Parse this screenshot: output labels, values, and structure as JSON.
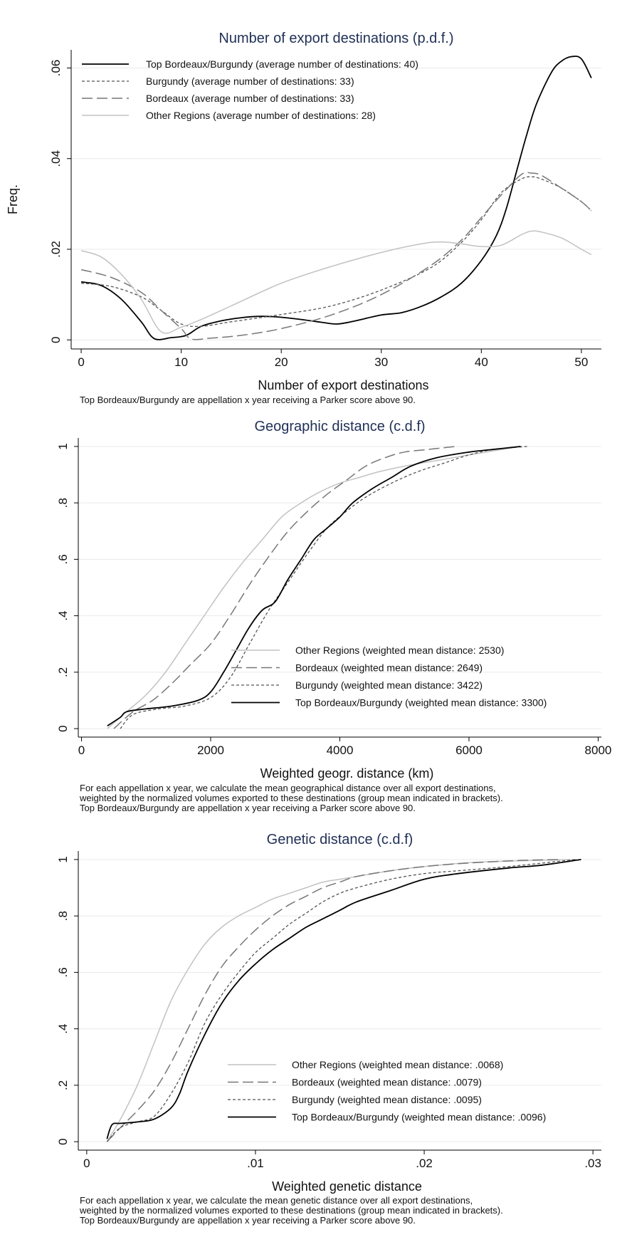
{
  "chart_data": [
    {
      "type": "line",
      "title": "Number of export destinations (p.d.f.)",
      "xlabel": "Number of export destinations",
      "ylabel": "Freq.",
      "xlim": [
        -1,
        52
      ],
      "ylim": [
        -0.002,
        0.064
      ],
      "xticks": [
        0,
        10,
        20,
        30,
        40,
        50
      ],
      "xtick_labels": [
        "0",
        "10",
        "20",
        "30",
        "40",
        "50"
      ],
      "yticks": [
        0,
        0.02,
        0.04,
        0.06
      ],
      "ytick_labels": [
        "0",
        ".02",
        ".04",
        ".06"
      ],
      "grid": true,
      "legend_position": "top-left",
      "note": [
        "Top Bordeaux/Burgundy are appellation x year receiving a Parker score above 90."
      ],
      "series": [
        {
          "name": "Top Bordeaux/Burgundy (average number of destinations: 40)",
          "color": "#000000",
          "dash": "",
          "width": 1.8,
          "x": [
            0,
            2,
            4,
            6,
            7.3,
            9,
            10.5,
            12,
            14,
            16,
            18,
            20,
            22,
            24,
            25.5,
            27,
            30,
            32,
            34,
            36,
            38,
            40,
            41.5,
            42.5,
            43.5,
            44.5,
            45.5,
            47,
            48,
            49,
            50,
            51
          ],
          "y": [
            0.0128,
            0.012,
            0.009,
            0.004,
            0.0003,
            0.0005,
            0.001,
            0.003,
            0.0042,
            0.0049,
            0.0052,
            0.005,
            0.0045,
            0.0039,
            0.0035,
            0.004,
            0.0055,
            0.006,
            0.0074,
            0.0095,
            0.0125,
            0.0175,
            0.023,
            0.029,
            0.037,
            0.045,
            0.052,
            0.059,
            0.0615,
            0.0625,
            0.062,
            0.0578
          ]
        },
        {
          "name": "Burgundy (average number of destinations: 33)",
          "color": "#555555",
          "dash": "4 3",
          "width": 1.3,
          "x": [
            0,
            3,
            6,
            8,
            10,
            12,
            15,
            20,
            25,
            30,
            35,
            38,
            40,
            42,
            44,
            45,
            46,
            48,
            50,
            51
          ],
          "y": [
            0.0125,
            0.0118,
            0.0095,
            0.0065,
            0.0035,
            0.003,
            0.004,
            0.0056,
            0.0075,
            0.011,
            0.016,
            0.0215,
            0.0265,
            0.0325,
            0.0355,
            0.036,
            0.0355,
            0.0335,
            0.0305,
            0.0285
          ]
        },
        {
          "name": "Bordeaux (average number of destinations: 33)",
          "color": "#777777",
          "dash": "15 6",
          "width": 1.5,
          "x": [
            0,
            3,
            6,
            8,
            10,
            11,
            13,
            16,
            20,
            25,
            30,
            35,
            38,
            40,
            42,
            44,
            45,
            46,
            48,
            50,
            51
          ],
          "y": [
            0.0155,
            0.0138,
            0.0105,
            0.0065,
            0.0025,
            0.0002,
            0.0004,
            0.001,
            0.0025,
            0.0055,
            0.01,
            0.0165,
            0.022,
            0.027,
            0.032,
            0.0365,
            0.0368,
            0.0363,
            0.0335,
            0.0305,
            0.0285
          ]
        },
        {
          "name": "Other Regions (average number of destinations: 28)",
          "color": "#c2c2c2",
          "dash": "",
          "width": 1.5,
          "x": [
            0,
            2,
            4,
            6,
            8,
            10,
            12,
            15,
            20,
            25,
            30,
            34,
            36,
            38,
            40,
            42,
            44,
            45,
            46,
            48,
            50,
            51
          ],
          "y": [
            0.0197,
            0.0183,
            0.0145,
            0.009,
            0.0018,
            0.0028,
            0.0045,
            0.0075,
            0.0125,
            0.0162,
            0.0193,
            0.0212,
            0.0216,
            0.0212,
            0.0206,
            0.0209,
            0.0232,
            0.024,
            0.0238,
            0.0225,
            0.02,
            0.0188
          ]
        }
      ]
    },
    {
      "type": "line",
      "title": "Geographic distance (c.d.f)",
      "xlabel": "Weighted geogr. distance (km)",
      "ylabel": "",
      "xlim": [
        -50,
        8050
      ],
      "ylim": [
        -0.03,
        1.03
      ],
      "xticks": [
        0,
        2000,
        4000,
        6000,
        8000
      ],
      "xtick_labels": [
        "0",
        "2000",
        "4000",
        "6000",
        "8000"
      ],
      "yticks": [
        0,
        0.2,
        0.4,
        0.6,
        0.8,
        1
      ],
      "ytick_labels": [
        "0",
        ".2",
        ".4",
        ".6",
        ".8",
        "1"
      ],
      "grid": true,
      "legend_position": "bottom-right",
      "note": [
        "For each appellation x year, we calculate the mean geographical distance over all export destinations,",
        "weighted by the normalized volumes exported to these destinations (group mean indicated in brackets).",
        "Top Bordeaux/Burgundy are appellation x year receiving a Parker score above 90."
      ],
      "series": [
        {
          "name": "Other Regions (weighted mean distance: 2530)",
          "color": "#c2c2c2",
          "dash": "",
          "width": 1.5,
          "x": [
            400,
            700,
            1000,
            1300,
            1600,
            1900,
            2200,
            2500,
            2800,
            3100,
            3400,
            3700,
            4000,
            4300,
            4600,
            5000,
            5500,
            6000,
            6400,
            6800
          ],
          "y": [
            0,
            0.06,
            0.12,
            0.2,
            0.3,
            0.4,
            0.5,
            0.59,
            0.67,
            0.75,
            0.8,
            0.84,
            0.87,
            0.89,
            0.91,
            0.93,
            0.95,
            0.97,
            0.985,
            1
          ]
        },
        {
          "name": "Bordeaux (weighted mean distance: 2649)",
          "color": "#777777",
          "dash": "15 6",
          "width": 1.5,
          "x": [
            500,
            800,
            1100,
            1400,
            1700,
            2000,
            2300,
            2600,
            2900,
            3200,
            3500,
            3800,
            4100,
            4400,
            4700,
            5000,
            5400,
            5800
          ],
          "y": [
            0,
            0.06,
            0.1,
            0.16,
            0.23,
            0.3,
            0.4,
            0.51,
            0.61,
            0.7,
            0.77,
            0.83,
            0.88,
            0.93,
            0.96,
            0.98,
            0.99,
            1
          ]
        },
        {
          "name": "Burgundy (weighted mean distance: 3422)",
          "color": "#555555",
          "dash": "4 3",
          "width": 1.3,
          "x": [
            600,
            800,
            1200,
            1600,
            2000,
            2300,
            2600,
            2900,
            3200,
            3500,
            3800,
            4100,
            4400,
            4800,
            5200,
            5600,
            6000,
            6400,
            6900
          ],
          "y": [
            0,
            0.05,
            0.07,
            0.08,
            0.11,
            0.18,
            0.3,
            0.42,
            0.52,
            0.62,
            0.71,
            0.77,
            0.82,
            0.87,
            0.91,
            0.94,
            0.97,
            0.99,
            1
          ]
        },
        {
          "name": "Top Bordeaux/Burgundy (weighted mean distance: 3300)",
          "color": "#000000",
          "dash": "",
          "width": 1.8,
          "x": [
            400,
            600,
            700,
            1000,
            1400,
            1800,
            2000,
            2200,
            2400,
            2600,
            2800,
            3000,
            3200,
            3400,
            3600,
            3800,
            4000,
            4200,
            4500,
            4800,
            5100,
            5500,
            6000,
            6400,
            6800
          ],
          "y": [
            0.01,
            0.04,
            0.06,
            0.07,
            0.08,
            0.1,
            0.13,
            0.2,
            0.28,
            0.36,
            0.42,
            0.45,
            0.53,
            0.6,
            0.67,
            0.71,
            0.75,
            0.8,
            0.85,
            0.89,
            0.93,
            0.96,
            0.98,
            0.99,
            1
          ]
        }
      ]
    },
    {
      "type": "line",
      "title": "Genetic distance (c.d.f)",
      "xlabel": "Weighted genetic distance",
      "ylabel": "",
      "xlim": [
        -0.0005,
        0.0305
      ],
      "ylim": [
        -0.03,
        1.03
      ],
      "xticks": [
        0,
        0.01,
        0.02,
        0.03
      ],
      "xtick_labels": [
        "0",
        ".01",
        ".02",
        ".03"
      ],
      "yticks": [
        0,
        0.2,
        0.4,
        0.6,
        0.8,
        1
      ],
      "ytick_labels": [
        "0",
        ".2",
        ".4",
        ".6",
        ".8",
        "1"
      ],
      "grid": true,
      "legend_position": "bottom-right",
      "note": [
        "For each appellation x year, we calculate the mean genetic distance over all export destinations,",
        "weighted by the normalized volumes exported to these destinations (group mean indicated in brackets).",
        "Top Bordeaux/Burgundy are appellation x year receiving a Parker score above 90."
      ],
      "series": [
        {
          "name": "Other Regions (weighted mean distance: .0068)",
          "color": "#c2c2c2",
          "dash": "",
          "width": 1.5,
          "x": [
            0.0012,
            0.002,
            0.003,
            0.004,
            0.005,
            0.006,
            0.007,
            0.008,
            0.009,
            0.01,
            0.011,
            0.012,
            0.013,
            0.014,
            0.015,
            0.016,
            0.018,
            0.02,
            0.023,
            0.026,
            0.029
          ],
          "y": [
            0,
            0.08,
            0.2,
            0.35,
            0.5,
            0.61,
            0.7,
            0.76,
            0.8,
            0.83,
            0.86,
            0.88,
            0.9,
            0.92,
            0.93,
            0.94,
            0.96,
            0.975,
            0.99,
            0.996,
            1
          ]
        },
        {
          "name": "Bordeaux (weighted mean distance: .0079)",
          "color": "#777777",
          "dash": "15 6",
          "width": 1.5,
          "x": [
            0.0012,
            0.002,
            0.003,
            0.004,
            0.005,
            0.006,
            0.007,
            0.008,
            0.009,
            0.01,
            0.011,
            0.012,
            0.013,
            0.014,
            0.015,
            0.016,
            0.018,
            0.02,
            0.022,
            0.025,
            0.028
          ],
          "y": [
            0,
            0.05,
            0.11,
            0.18,
            0.28,
            0.4,
            0.52,
            0.62,
            0.69,
            0.75,
            0.8,
            0.84,
            0.87,
            0.9,
            0.92,
            0.94,
            0.96,
            0.975,
            0.985,
            0.995,
            1
          ]
        },
        {
          "name": "Burgundy (weighted mean distance: .0095)",
          "color": "#555555",
          "dash": "4 3",
          "width": 1.3,
          "x": [
            0.0012,
            0.002,
            0.003,
            0.004,
            0.005,
            0.006,
            0.007,
            0.008,
            0.009,
            0.01,
            0.011,
            0.012,
            0.013,
            0.014,
            0.015,
            0.016,
            0.018,
            0.02,
            0.022,
            0.025,
            0.029
          ],
          "y": [
            0,
            0.05,
            0.07,
            0.09,
            0.17,
            0.28,
            0.42,
            0.52,
            0.6,
            0.67,
            0.72,
            0.77,
            0.81,
            0.85,
            0.88,
            0.9,
            0.93,
            0.95,
            0.96,
            0.975,
            1
          ]
        },
        {
          "name": "Top Bordeaux/Burgundy (weighted mean distance: .0096)",
          "color": "#000000",
          "dash": "",
          "width": 1.8,
          "x": [
            0.0012,
            0.0015,
            0.002,
            0.003,
            0.004,
            0.005,
            0.0055,
            0.006,
            0.007,
            0.008,
            0.009,
            0.01,
            0.011,
            0.012,
            0.013,
            0.014,
            0.015,
            0.016,
            0.018,
            0.02,
            0.022,
            0.025,
            0.027,
            0.0293
          ],
          "y": [
            0.01,
            0.06,
            0.065,
            0.07,
            0.08,
            0.12,
            0.17,
            0.25,
            0.38,
            0.49,
            0.57,
            0.63,
            0.68,
            0.72,
            0.76,
            0.79,
            0.82,
            0.85,
            0.89,
            0.93,
            0.95,
            0.97,
            0.98,
            1
          ]
        }
      ]
    }
  ]
}
